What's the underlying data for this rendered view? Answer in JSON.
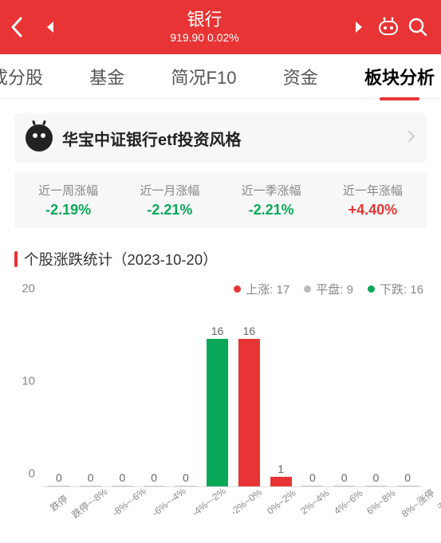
{
  "colors": {
    "brand": "#e83434",
    "up": "#e83434",
    "down": "#0aa858",
    "flat": "#bcbcbc",
    "text_muted": "#888888",
    "bg_card": "#f7f7f7"
  },
  "header": {
    "title": "银行",
    "price": "919.90",
    "change_pct": "0.02%"
  },
  "tabs": [
    {
      "label": "成分股",
      "key": "components",
      "partial": true
    },
    {
      "label": "基金",
      "key": "funds"
    },
    {
      "label": "简况F10",
      "key": "f10"
    },
    {
      "label": "资金",
      "key": "capital"
    },
    {
      "label": "板块分析",
      "key": "analysis",
      "active": true
    }
  ],
  "style_card": {
    "title": "华宝中证银行etf投资风格"
  },
  "performance": [
    {
      "label": "近一周涨幅",
      "value": "-2.19%",
      "dir": "down"
    },
    {
      "label": "近一月涨幅",
      "value": "-2.21%",
      "dir": "down"
    },
    {
      "label": "近一季涨幅",
      "value": "-2.21%",
      "dir": "down"
    },
    {
      "label": "近一年涨幅",
      "value": "+4.40%",
      "dir": "up"
    }
  ],
  "stats_section": {
    "title": "个股涨跌统计（2023-10-20）",
    "legend": {
      "up": {
        "label": "上涨",
        "count": 17
      },
      "flat": {
        "label": "平盘",
        "count": 9
      },
      "down": {
        "label": "下跌",
        "count": 16
      }
    },
    "chart": {
      "type": "bar",
      "ylim": [
        0,
        20
      ],
      "yticks": [
        0,
        10,
        20
      ],
      "bar_width_pct": 68,
      "value_fontsize": 14,
      "axis_fontsize": 15,
      "xlabel_fontsize": 12,
      "xlabel_rotate_deg": -38,
      "grid": false,
      "categories": [
        "跌停",
        "跌停~-8%",
        "-8%~-6%",
        "-6%~-4%",
        "-4%~-2%",
        "-2%~0%",
        "0%~2%",
        "2%~4%",
        "4%~6%",
        "6%~8%",
        "8%~涨停",
        "涨停"
      ],
      "color_map": [
        "down",
        "down",
        "down",
        "down",
        "down",
        "down",
        "up",
        "up",
        "up",
        "up",
        "up",
        "up"
      ],
      "values": [
        0,
        0,
        0,
        0,
        0,
        16,
        16,
        1,
        0,
        0,
        0,
        0
      ]
    }
  }
}
